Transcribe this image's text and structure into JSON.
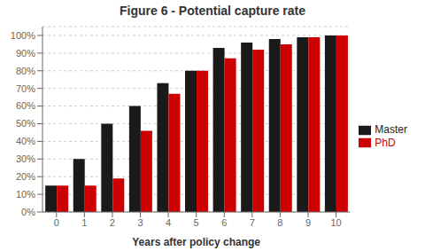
{
  "chart_data": {
    "type": "bar",
    "title": "Figure 6 - Potential capture rate",
    "x_label": "Years after policy change",
    "categories": [
      0,
      1,
      2,
      3,
      4,
      5,
      6,
      7,
      8,
      9,
      10
    ],
    "series": [
      {
        "name": "Master",
        "color": "#1a1a1a",
        "values": [
          0.15,
          0.3,
          0.5,
          0.6,
          0.73,
          0.8,
          0.93,
          0.96,
          0.98,
          0.99,
          1.0
        ]
      },
      {
        "name": "PhD",
        "color": "#cc0000",
        "values": [
          0.15,
          0.15,
          0.19,
          0.46,
          0.67,
          0.8,
          0.87,
          0.92,
          0.95,
          0.99,
          1.0
        ]
      }
    ],
    "ylim": [
      0,
      1.05
    ],
    "yticks": [
      {
        "value": 0.0,
        "label": "0%"
      },
      {
        "value": 0.1,
        "label": "10%"
      },
      {
        "value": 0.2,
        "label": "20%"
      },
      {
        "value": 0.3,
        "label": "30%"
      },
      {
        "value": 0.4,
        "label": "40%"
      },
      {
        "value": 0.5,
        "label": "50%"
      },
      {
        "value": 0.6,
        "label": "60%"
      },
      {
        "value": 0.7,
        "label": "70%"
      },
      {
        "value": 0.8,
        "label": "80%"
      },
      {
        "value": 0.9,
        "label": "90%"
      },
      {
        "value": 1.0,
        "label": "100%"
      }
    ],
    "grid": true,
    "legend": "right"
  }
}
